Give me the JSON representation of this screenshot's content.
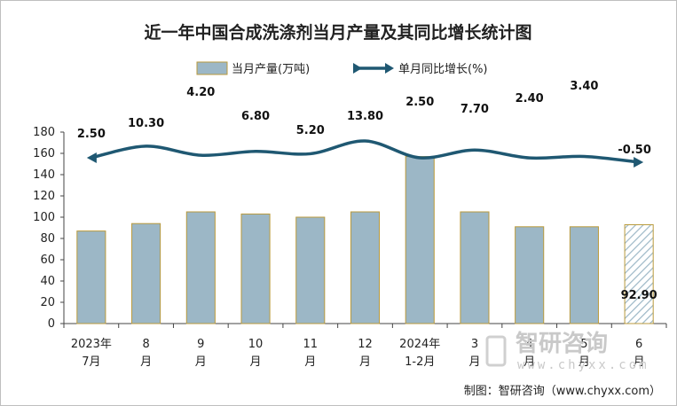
{
  "chart_data": {
    "type": "bar",
    "title": "近一年中国合成洗涤剂当月产量及其同比增长统计图",
    "categories": [
      [
        "2023年",
        "7月"
      ],
      [
        "8",
        "月"
      ],
      [
        "9",
        "月"
      ],
      [
        "10",
        "月"
      ],
      [
        "11",
        "月"
      ],
      [
        "12",
        "月"
      ],
      [
        "2024年",
        "1-2月"
      ],
      [
        "3",
        "月"
      ],
      [
        "4",
        "月"
      ],
      [
        "5",
        "月"
      ],
      [
        "6",
        "月"
      ]
    ],
    "ylim": [
      0,
      180
    ],
    "yticks": [
      0,
      20,
      40,
      60,
      80,
      100,
      120,
      140,
      160,
      180
    ],
    "series": [
      {
        "name": "当月产量(万吨)",
        "type": "bar",
        "values": [
          87,
          94,
          105,
          103,
          100,
          105,
          157,
          105,
          91,
          91,
          92.9
        ],
        "color": "#9cb7c6",
        "border": "#b99a3c",
        "last_hatched": true,
        "shown_value_label": "92.90"
      },
      {
        "name": "单月同比增长(%)",
        "type": "line",
        "values": [
          2.5,
          10.3,
          4.2,
          6.8,
          5.2,
          13.8,
          2.5,
          7.7,
          2.4,
          3.4,
          -0.5
        ],
        "labels": [
          "2.50",
          "10.30",
          "4.20",
          "6.80",
          "5.20",
          "13.80",
          "2.50",
          "7.70",
          "2.40",
          "3.40",
          "-0.50"
        ],
        "color": "#1f5872"
      }
    ],
    "legend_position": "top"
  },
  "source": "制图：智研咨询（www.chyxx.com）",
  "watermark": {
    "brand": "智研咨询",
    "site": "www.chyxx.com"
  }
}
